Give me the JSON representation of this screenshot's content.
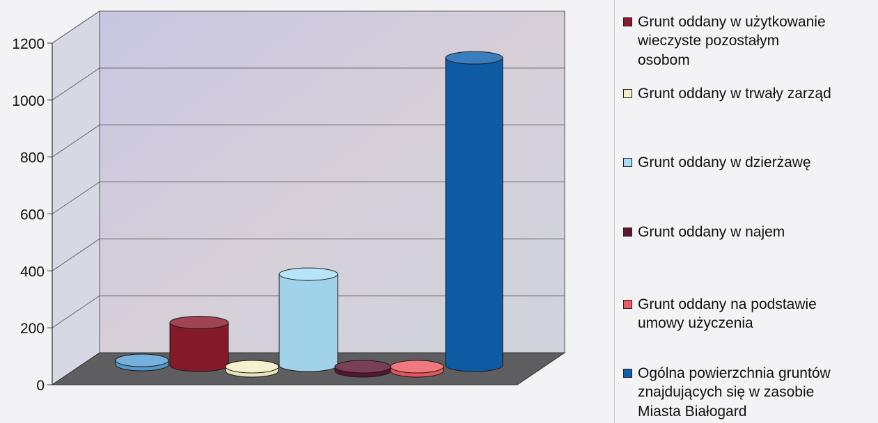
{
  "chart_data": {
    "type": "bar",
    "title": "",
    "xlabel": "",
    "ylabel": "",
    "ylim": [
      0,
      1200
    ],
    "yticks": [
      0,
      200,
      400,
      600,
      800,
      1000,
      1200
    ],
    "grid": true,
    "legend_position": "right",
    "series": [
      {
        "name": "Grunt oddany w użytkowanie\nwieczyste pozostałym\nosobom",
        "value": 150,
        "color": "#8b1a2c"
      },
      {
        "name": "Grunt oddany w trwały zarząd",
        "value": 5,
        "color": "#f3eec3"
      },
      {
        "name": "Grunt oddany w dzierżawę",
        "value": 320,
        "color": "#a8def6"
      },
      {
        "name": "Grunt oddany w najem",
        "value": 5,
        "color": "#5c1530"
      },
      {
        "name": "Grunt oddany na podstawie\numowy użyczenia",
        "value": 5,
        "color": "#ee5a61"
      },
      {
        "name": "Ogólna powierzchnia gruntów\nznajdujących się w zasobie\nMiasta Białogard",
        "value": 1080,
        "color": "#0f60ad"
      }
    ],
    "extra_disc": {
      "value": 5,
      "color": "#5a9fd6"
    }
  }
}
